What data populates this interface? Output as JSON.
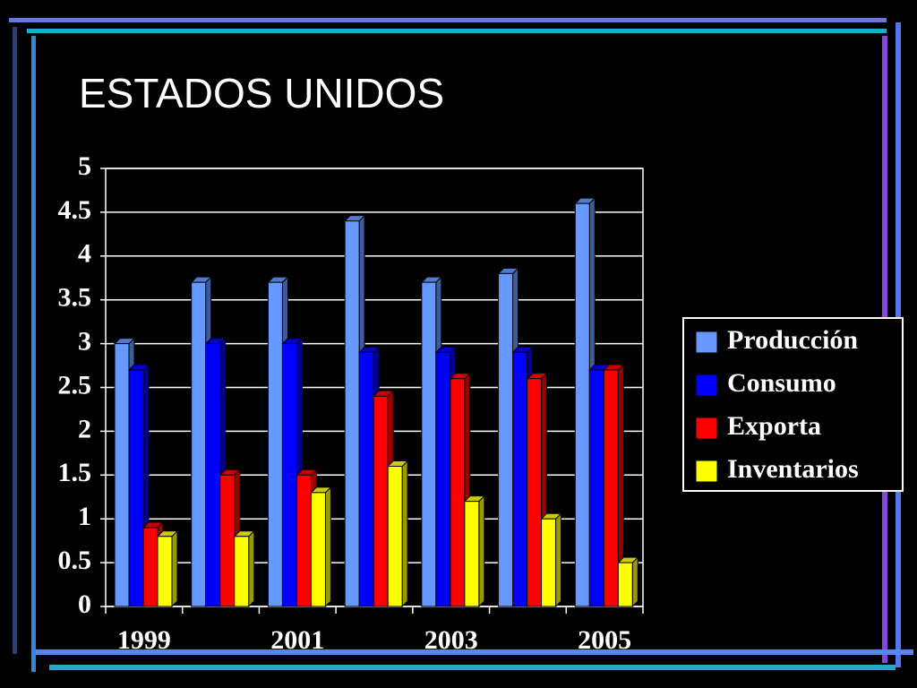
{
  "chart_data": {
    "type": "bar",
    "title": "ESTADOS UNIDOS",
    "categories": [
      "1999",
      null,
      "2001",
      null,
      "2003",
      null,
      "2005"
    ],
    "series": [
      {
        "name": "Producción",
        "color": "#6699ff",
        "values": [
          3,
          3.7,
          3.7,
          4.4,
          3.7,
          3.8,
          4.6
        ]
      },
      {
        "name": "Consumo",
        "color": "#0000ff",
        "values": [
          2.7,
          3,
          3,
          2.9,
          2.9,
          2.9,
          2.7
        ]
      },
      {
        "name": "Exporta",
        "color": "#ff0000",
        "values": [
          0.9,
          1.5,
          1.5,
          2.4,
          2.6,
          2.6,
          2.7
        ]
      },
      {
        "name": "Inventarios",
        "color": "#ffff00",
        "values": [
          0.8,
          0.8,
          1.3,
          1.6,
          1.2,
          1,
          0.5
        ]
      }
    ],
    "ylim": [
      0,
      5
    ],
    "yticks": [
      0,
      0.5,
      1,
      1.5,
      2,
      2.5,
      3,
      3.5,
      4,
      4.5,
      5
    ],
    "grid": true,
    "legend": "right"
  }
}
